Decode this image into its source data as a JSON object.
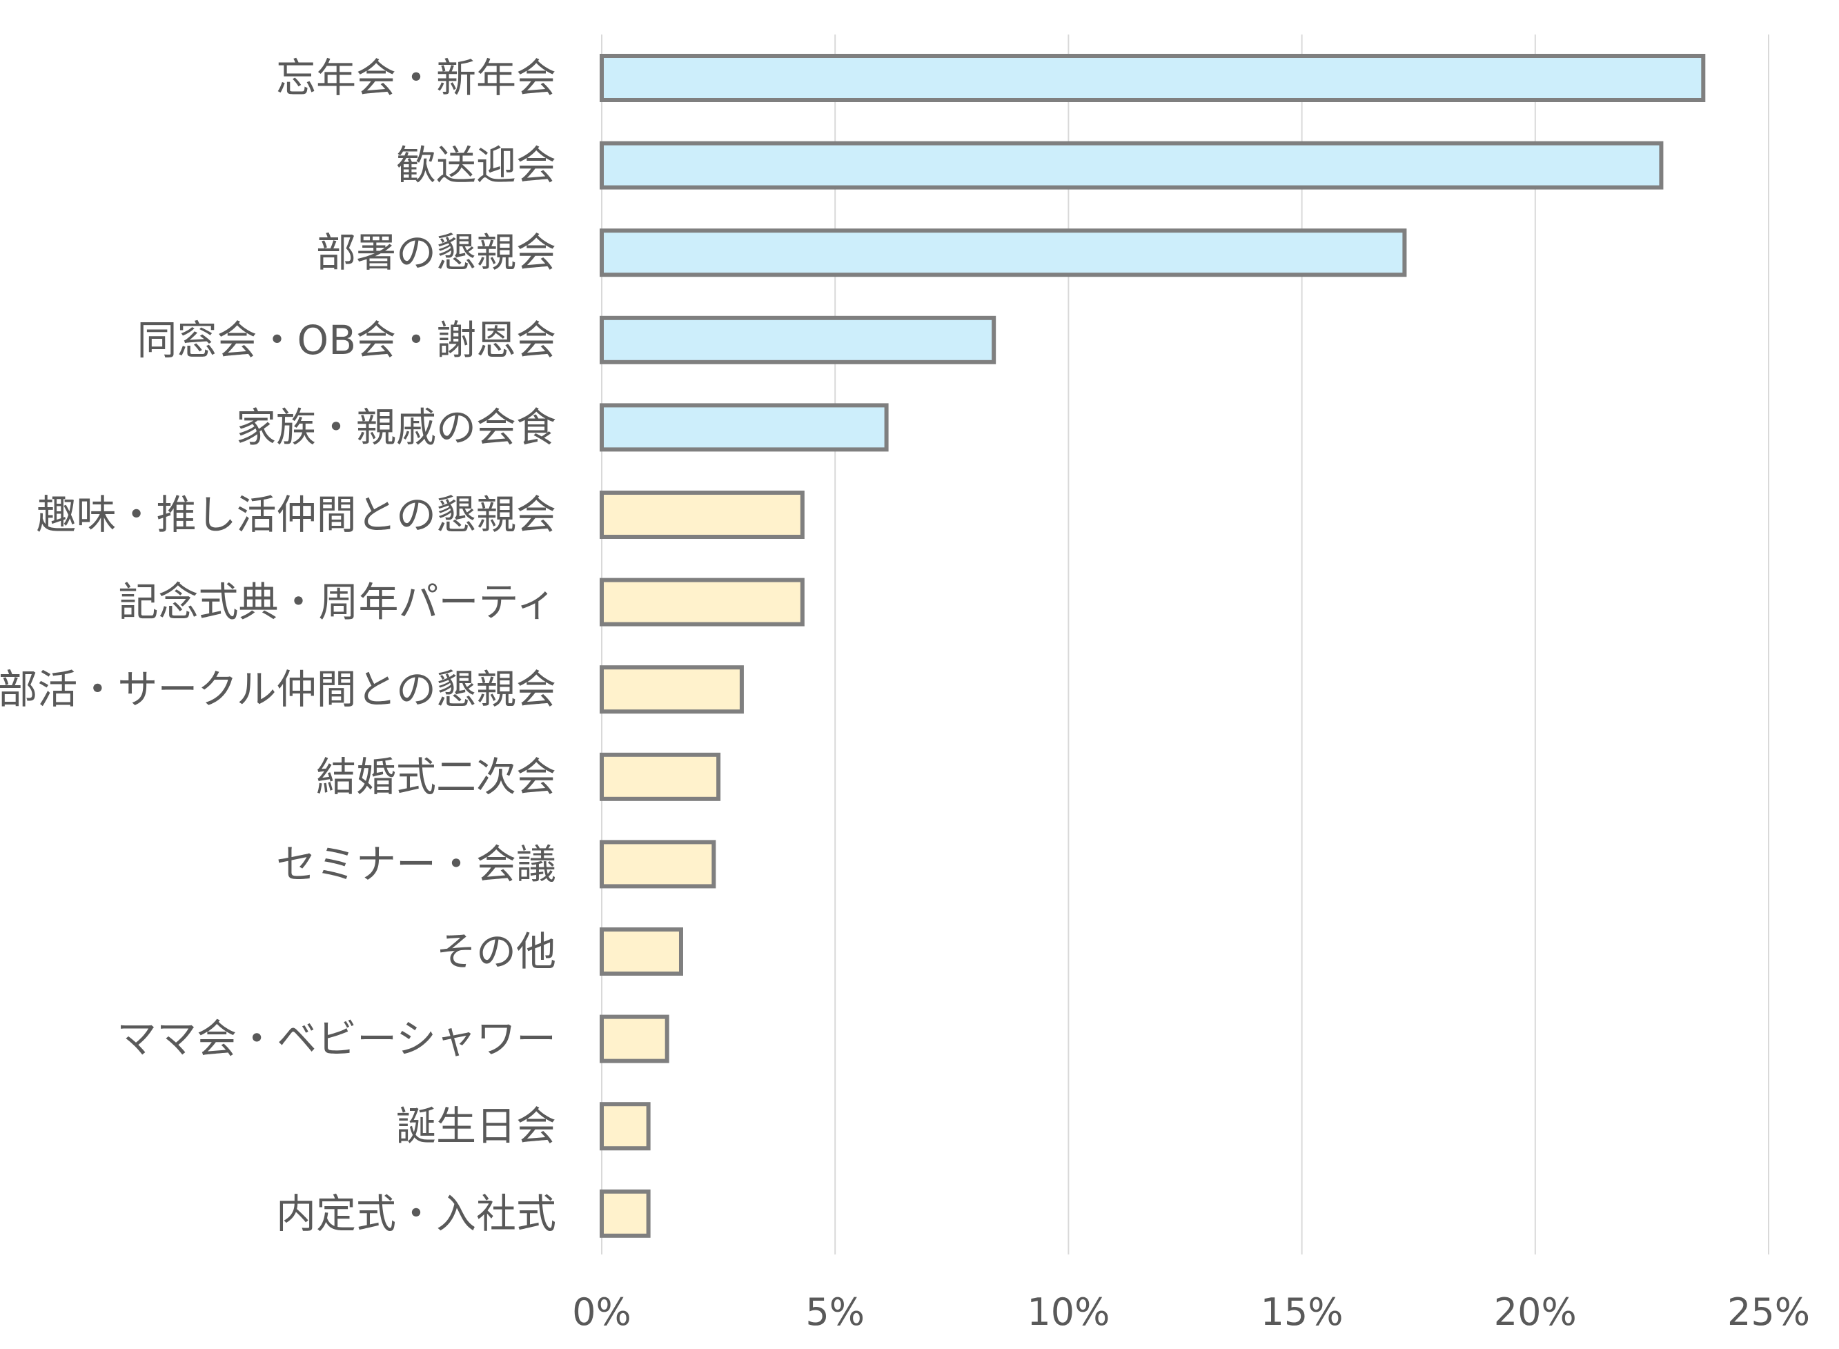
{
  "chart_data": {
    "type": "bar",
    "orientation": "horizontal",
    "categories": [
      "忘年会・新年会",
      "歓送迎会",
      "部署の懇親会",
      "同窓会・OB会・謝恩会",
      "家族・親戚の会食",
      "趣味・推し活仲間との懇親会",
      "記念式典・周年パーティ",
      "部活・サークル仲間との懇親会",
      "結婚式二次会",
      "セミナー・会議",
      "その他",
      "ママ会・ベビーシャワー",
      "誕生日会",
      "内定式・入社式"
    ],
    "values": [
      23.6,
      22.7,
      17.2,
      8.4,
      6.1,
      4.3,
      4.3,
      3.0,
      2.5,
      2.4,
      1.7,
      1.4,
      1.0,
      1.0
    ],
    "xlim": [
      0,
      25
    ],
    "xticks": [
      0,
      5,
      10,
      15,
      20,
      25
    ],
    "tick_labels": [
      "0%",
      "5%",
      "10%",
      "15%",
      "20%",
      "25%"
    ],
    "grid": true,
    "highlight_count": 5,
    "colors": {
      "highlight_fill": "#cdeefb",
      "normal_fill": "#fff2cc",
      "bar_stroke": "#7f7f7f",
      "grid": "#d9d9d9",
      "text": "#595959"
    }
  }
}
